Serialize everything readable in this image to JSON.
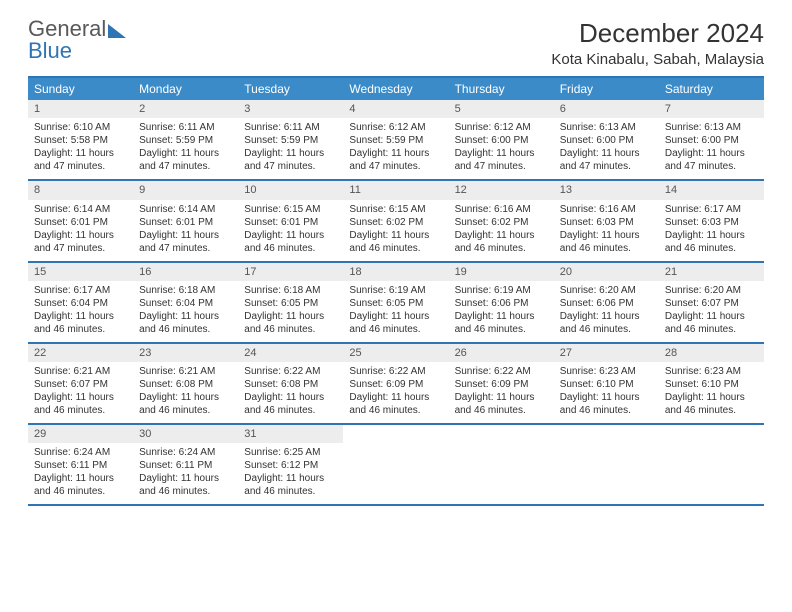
{
  "logo": {
    "part1": "General",
    "part2": "Blue"
  },
  "title": "December 2024",
  "location": "Kota Kinabalu, Sabah, Malaysia",
  "colors": {
    "header_bg": "#3b8bc9",
    "border": "#2f75b5",
    "daynum_bg": "#ededed",
    "text": "#333333",
    "logo_gray": "#595959",
    "logo_blue": "#2f75b5"
  },
  "day_headers": [
    "Sunday",
    "Monday",
    "Tuesday",
    "Wednesday",
    "Thursday",
    "Friday",
    "Saturday"
  ],
  "weeks": [
    [
      {
        "n": "1",
        "sr": "6:10 AM",
        "ss": "5:58 PM",
        "dl": "11 hours and 47 minutes."
      },
      {
        "n": "2",
        "sr": "6:11 AM",
        "ss": "5:59 PM",
        "dl": "11 hours and 47 minutes."
      },
      {
        "n": "3",
        "sr": "6:11 AM",
        "ss": "5:59 PM",
        "dl": "11 hours and 47 minutes."
      },
      {
        "n": "4",
        "sr": "6:12 AM",
        "ss": "5:59 PM",
        "dl": "11 hours and 47 minutes."
      },
      {
        "n": "5",
        "sr": "6:12 AM",
        "ss": "6:00 PM",
        "dl": "11 hours and 47 minutes."
      },
      {
        "n": "6",
        "sr": "6:13 AM",
        "ss": "6:00 PM",
        "dl": "11 hours and 47 minutes."
      },
      {
        "n": "7",
        "sr": "6:13 AM",
        "ss": "6:00 PM",
        "dl": "11 hours and 47 minutes."
      }
    ],
    [
      {
        "n": "8",
        "sr": "6:14 AM",
        "ss": "6:01 PM",
        "dl": "11 hours and 47 minutes."
      },
      {
        "n": "9",
        "sr": "6:14 AM",
        "ss": "6:01 PM",
        "dl": "11 hours and 47 minutes."
      },
      {
        "n": "10",
        "sr": "6:15 AM",
        "ss": "6:01 PM",
        "dl": "11 hours and 46 minutes."
      },
      {
        "n": "11",
        "sr": "6:15 AM",
        "ss": "6:02 PM",
        "dl": "11 hours and 46 minutes."
      },
      {
        "n": "12",
        "sr": "6:16 AM",
        "ss": "6:02 PM",
        "dl": "11 hours and 46 minutes."
      },
      {
        "n": "13",
        "sr": "6:16 AM",
        "ss": "6:03 PM",
        "dl": "11 hours and 46 minutes."
      },
      {
        "n": "14",
        "sr": "6:17 AM",
        "ss": "6:03 PM",
        "dl": "11 hours and 46 minutes."
      }
    ],
    [
      {
        "n": "15",
        "sr": "6:17 AM",
        "ss": "6:04 PM",
        "dl": "11 hours and 46 minutes."
      },
      {
        "n": "16",
        "sr": "6:18 AM",
        "ss": "6:04 PM",
        "dl": "11 hours and 46 minutes."
      },
      {
        "n": "17",
        "sr": "6:18 AM",
        "ss": "6:05 PM",
        "dl": "11 hours and 46 minutes."
      },
      {
        "n": "18",
        "sr": "6:19 AM",
        "ss": "6:05 PM",
        "dl": "11 hours and 46 minutes."
      },
      {
        "n": "19",
        "sr": "6:19 AM",
        "ss": "6:06 PM",
        "dl": "11 hours and 46 minutes."
      },
      {
        "n": "20",
        "sr": "6:20 AM",
        "ss": "6:06 PM",
        "dl": "11 hours and 46 minutes."
      },
      {
        "n": "21",
        "sr": "6:20 AM",
        "ss": "6:07 PM",
        "dl": "11 hours and 46 minutes."
      }
    ],
    [
      {
        "n": "22",
        "sr": "6:21 AM",
        "ss": "6:07 PM",
        "dl": "11 hours and 46 minutes."
      },
      {
        "n": "23",
        "sr": "6:21 AM",
        "ss": "6:08 PM",
        "dl": "11 hours and 46 minutes."
      },
      {
        "n": "24",
        "sr": "6:22 AM",
        "ss": "6:08 PM",
        "dl": "11 hours and 46 minutes."
      },
      {
        "n": "25",
        "sr": "6:22 AM",
        "ss": "6:09 PM",
        "dl": "11 hours and 46 minutes."
      },
      {
        "n": "26",
        "sr": "6:22 AM",
        "ss": "6:09 PM",
        "dl": "11 hours and 46 minutes."
      },
      {
        "n": "27",
        "sr": "6:23 AM",
        "ss": "6:10 PM",
        "dl": "11 hours and 46 minutes."
      },
      {
        "n": "28",
        "sr": "6:23 AM",
        "ss": "6:10 PM",
        "dl": "11 hours and 46 minutes."
      }
    ],
    [
      {
        "n": "29",
        "sr": "6:24 AM",
        "ss": "6:11 PM",
        "dl": "11 hours and 46 minutes."
      },
      {
        "n": "30",
        "sr": "6:24 AM",
        "ss": "6:11 PM",
        "dl": "11 hours and 46 minutes."
      },
      {
        "n": "31",
        "sr": "6:25 AM",
        "ss": "6:12 PM",
        "dl": "11 hours and 46 minutes."
      },
      {
        "empty": true
      },
      {
        "empty": true
      },
      {
        "empty": true
      },
      {
        "empty": true
      }
    ]
  ],
  "labels": {
    "sunrise": "Sunrise:",
    "sunset": "Sunset:",
    "daylight": "Daylight:"
  }
}
